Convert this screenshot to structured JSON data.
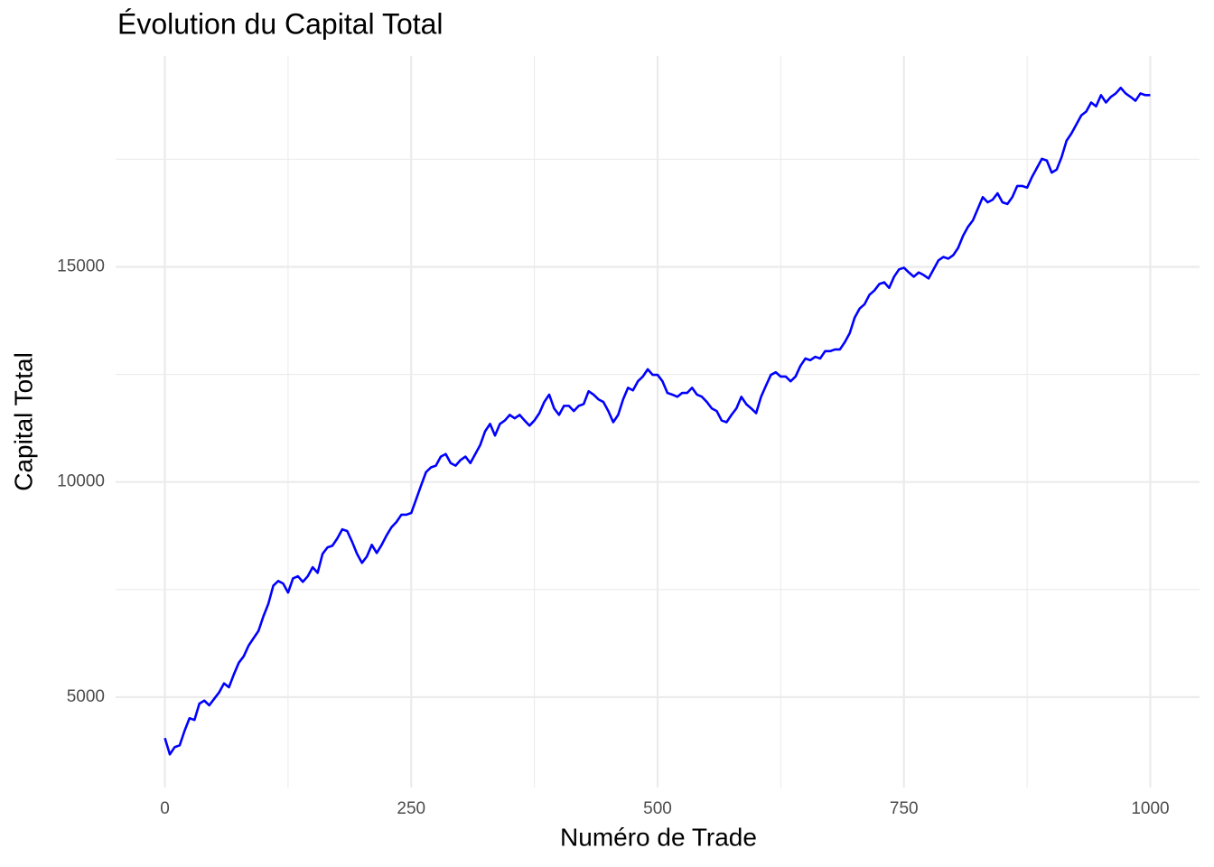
{
  "chart_data": {
    "type": "line",
    "title": "Évolution du Capital Total",
    "x_label": "Numéro de Trade",
    "y_label": "Capital Total",
    "color": "#0000ff",
    "grid": true,
    "xlim": [
      -50,
      1050
    ],
    "ylim": [
      2900,
      19900
    ],
    "xticks": [
      0,
      250,
      500,
      750,
      1000
    ],
    "yticks": [
      5000,
      10000,
      15000
    ],
    "x_minor_grid": [
      125,
      375,
      625,
      875
    ],
    "y_minor_grid": [
      7500,
      12500,
      17500
    ],
    "x": [
      0,
      5,
      10,
      15,
      20,
      25,
      30,
      35,
      40,
      45,
      50,
      55,
      60,
      65,
      70,
      75,
      80,
      85,
      90,
      95,
      100,
      105,
      110,
      115,
      120,
      125,
      130,
      135,
      140,
      145,
      150,
      155,
      160,
      165,
      170,
      175,
      180,
      185,
      190,
      195,
      200,
      205,
      210,
      215,
      220,
      225,
      230,
      235,
      240,
      245,
      250,
      255,
      260,
      265,
      270,
      275,
      280,
      285,
      290,
      295,
      300,
      305,
      310,
      315,
      320,
      325,
      330,
      335,
      340,
      345,
      350,
      355,
      360,
      365,
      370,
      375,
      380,
      385,
      390,
      395,
      400,
      405,
      410,
      415,
      420,
      425,
      430,
      435,
      440,
      445,
      450,
      455,
      460,
      465,
      470,
      475,
      480,
      485,
      490,
      495,
      500,
      505,
      510,
      515,
      520,
      525,
      530,
      535,
      540,
      545,
      550,
      555,
      560,
      565,
      570,
      575,
      580,
      585,
      590,
      595,
      600,
      605,
      610,
      615,
      620,
      625,
      630,
      635,
      640,
      645,
      650,
      655,
      660,
      665,
      670,
      675,
      680,
      685,
      690,
      695,
      700,
      705,
      710,
      715,
      720,
      725,
      730,
      735,
      740,
      745,
      750,
      755,
      760,
      765,
      770,
      775,
      780,
      785,
      790,
      795,
      800,
      805,
      810,
      815,
      820,
      825,
      830,
      835,
      840,
      845,
      850,
      855,
      860,
      865,
      870,
      875,
      880,
      885,
      890,
      895,
      900,
      905,
      910,
      915,
      920,
      925,
      930,
      935,
      940,
      945,
      950,
      955,
      960,
      965,
      970,
      975,
      980,
      985,
      990,
      995,
      1000
    ],
    "values": [
      4050,
      3670,
      3840,
      3880,
      4220,
      4510,
      4470,
      4850,
      4920,
      4810,
      4960,
      5110,
      5320,
      5230,
      5530,
      5800,
      5950,
      6200,
      6370,
      6540,
      6880,
      7170,
      7590,
      7700,
      7640,
      7430,
      7760,
      7810,
      7680,
      7810,
      8020,
      7890,
      8330,
      8480,
      8520,
      8690,
      8900,
      8860,
      8610,
      8330,
      8120,
      8270,
      8540,
      8350,
      8540,
      8760,
      8950,
      9070,
      9240,
      9240,
      9280,
      9600,
      9920,
      10230,
      10340,
      10380,
      10590,
      10650,
      10440,
      10380,
      10510,
      10590,
      10440,
      10650,
      10860,
      11180,
      11350,
      11080,
      11350,
      11430,
      11560,
      11480,
      11560,
      11430,
      11310,
      11430,
      11600,
      11860,
      12030,
      11710,
      11560,
      11770,
      11770,
      11650,
      11770,
      11810,
      12110,
      12030,
      11920,
      11860,
      11650,
      11390,
      11560,
      11920,
      12190,
      12130,
      12340,
      12450,
      12620,
      12490,
      12490,
      12340,
      12070,
      12030,
      11980,
      12070,
      12070,
      12190,
      12030,
      11980,
      11860,
      11710,
      11650,
      11430,
      11390,
      11560,
      11710,
      11980,
      11810,
      11710,
      11600,
      11980,
      12240,
      12490,
      12550,
      12450,
      12450,
      12340,
      12450,
      12700,
      12870,
      12830,
      12910,
      12870,
      13040,
      13040,
      13080,
      13080,
      13250,
      13460,
      13820,
      14030,
      14130,
      14350,
      14450,
      14600,
      14640,
      14510,
      14770,
      14940,
      14980,
      14870,
      14770,
      14870,
      14810,
      14730,
      14940,
      15150,
      15230,
      15190,
      15270,
      15440,
      15720,
      15930,
      16080,
      16350,
      16620,
      16500,
      16560,
      16710,
      16500,
      16460,
      16620,
      16880,
      16880,
      16840,
      17090,
      17300,
      17510,
      17470,
      17190,
      17260,
      17550,
      17930,
      18100,
      18310,
      18520,
      18610,
      18820,
      18730,
      18990,
      18820,
      18950,
      19030,
      19160,
      19030,
      18950,
      18860,
      19030,
      18990,
      18990
    ]
  }
}
